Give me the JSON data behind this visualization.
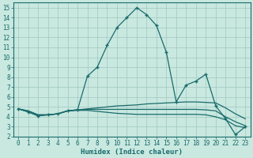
{
  "xlabel": "Humidex (Indice chaleur)",
  "xlim": [
    -0.5,
    23.5
  ],
  "ylim": [
    2,
    15.5
  ],
  "yticks": [
    2,
    3,
    4,
    5,
    6,
    7,
    8,
    9,
    10,
    11,
    12,
    13,
    14,
    15
  ],
  "xticks": [
    0,
    1,
    2,
    3,
    4,
    5,
    6,
    7,
    8,
    9,
    10,
    11,
    12,
    13,
    14,
    15,
    16,
    17,
    18,
    19,
    20,
    21,
    22,
    23
  ],
  "bg_color": "#c8e8e0",
  "grid_color": "#a0c8c0",
  "line_color": "#1a6b6b",
  "lines": [
    {
      "x": [
        0,
        1,
        2,
        3,
        4,
        5,
        6,
        7,
        8,
        9,
        10,
        11,
        12,
        13,
        14,
        15,
        16,
        17,
        18,
        19,
        20,
        21,
        22,
        23
      ],
      "y": [
        4.8,
        4.5,
        4.1,
        4.2,
        4.3,
        4.6,
        4.7,
        8.1,
        9.0,
        11.2,
        13.0,
        14.0,
        15.0,
        14.3,
        13.2,
        10.5,
        5.5,
        7.2,
        7.6,
        8.3,
        5.1,
        3.8,
        2.2,
        3.0
      ],
      "marker": "+",
      "lw": 0.9
    },
    {
      "x": [
        0,
        1,
        2,
        3,
        4,
        5,
        6,
        7,
        8,
        9,
        10,
        11,
        12,
        13,
        14,
        15,
        16,
        17,
        18,
        19,
        20,
        21,
        22,
        23
      ],
      "y": [
        4.8,
        4.6,
        4.2,
        4.2,
        4.3,
        4.6,
        4.7,
        4.8,
        4.9,
        5.0,
        5.1,
        5.15,
        5.2,
        5.3,
        5.35,
        5.4,
        5.45,
        5.5,
        5.5,
        5.45,
        5.4,
        4.9,
        4.3,
        3.8
      ],
      "marker": null,
      "lw": 0.9
    },
    {
      "x": [
        0,
        1,
        2,
        3,
        4,
        5,
        6,
        7,
        8,
        9,
        10,
        11,
        12,
        13,
        14,
        15,
        16,
        17,
        18,
        19,
        20,
        21,
        22,
        23
      ],
      "y": [
        4.8,
        4.6,
        4.2,
        4.2,
        4.3,
        4.6,
        4.7,
        4.75,
        4.75,
        4.75,
        4.75,
        4.75,
        4.75,
        4.75,
        4.75,
        4.75,
        4.75,
        4.75,
        4.75,
        4.7,
        4.6,
        4.0,
        3.5,
        3.1
      ],
      "marker": null,
      "lw": 0.9
    },
    {
      "x": [
        0,
        1,
        2,
        3,
        4,
        5,
        6,
        7,
        8,
        9,
        10,
        11,
        12,
        13,
        14,
        15,
        16,
        17,
        18,
        19,
        20,
        21,
        22,
        23
      ],
      "y": [
        4.8,
        4.5,
        4.1,
        4.2,
        4.3,
        4.6,
        4.65,
        4.65,
        4.55,
        4.45,
        4.35,
        4.3,
        4.25,
        4.25,
        4.25,
        4.25,
        4.25,
        4.25,
        4.25,
        4.2,
        4.0,
        3.7,
        3.1,
        2.9
      ],
      "marker": null,
      "lw": 0.9
    }
  ]
}
